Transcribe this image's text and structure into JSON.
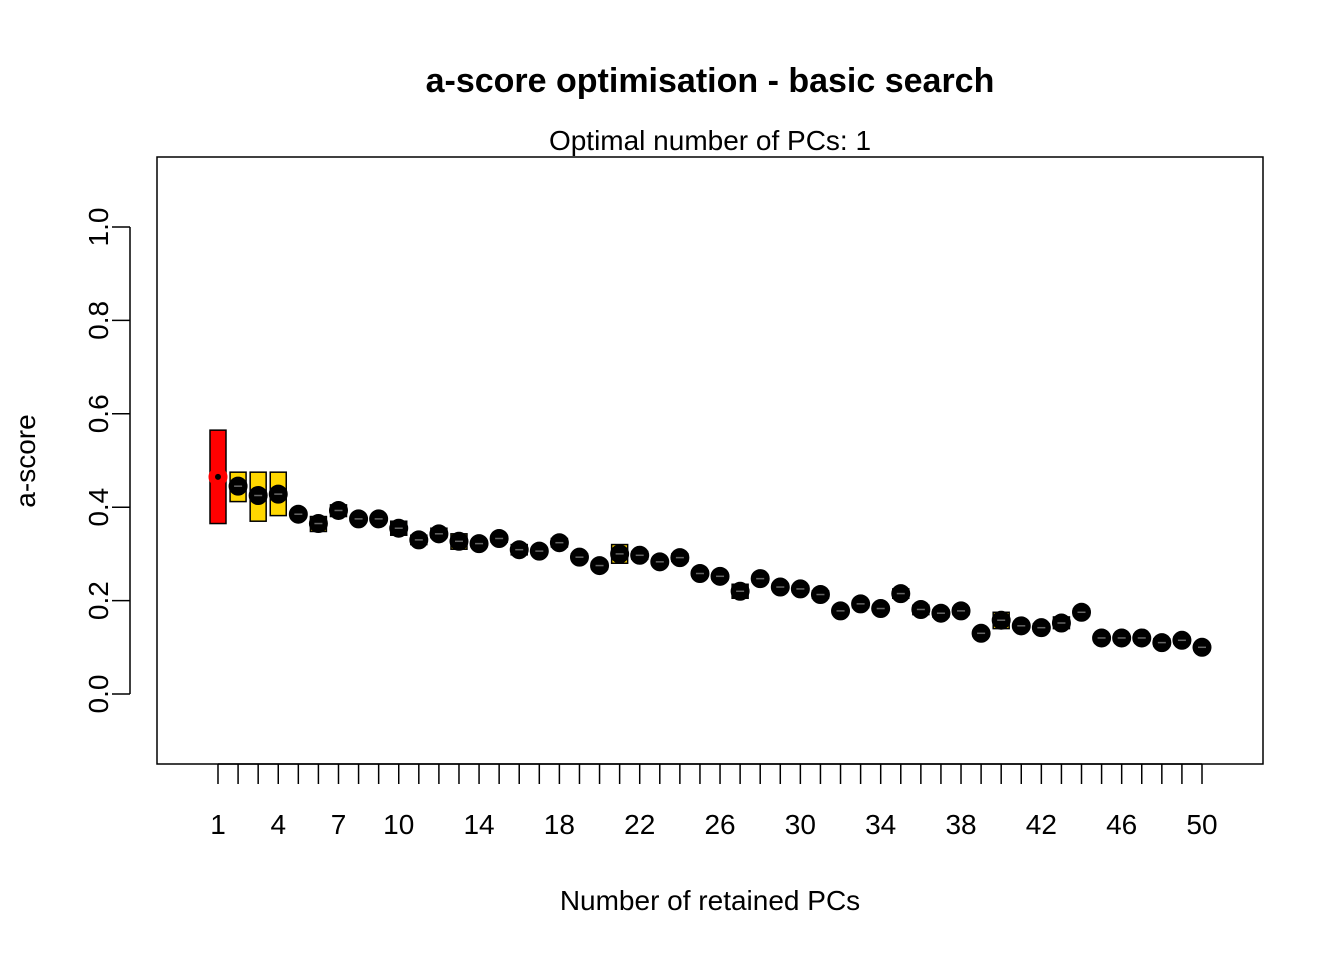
{
  "chart_data": {
    "type": "box",
    "title": "a-score optimisation - basic search",
    "subtitle": "Optimal number of PCs: 1",
    "xlabel": "Number of retained PCs",
    "ylabel": "a-score",
    "xlim": [
      1,
      50
    ],
    "ylim": [
      -0.15,
      1.15
    ],
    "x_tick_labels": [
      "1",
      "4",
      "7",
      "10",
      "14",
      "18",
      "22",
      "26",
      "30",
      "34",
      "38",
      "42",
      "46",
      "50"
    ],
    "y_ticks": [
      "0.0",
      "0.2",
      "0.4",
      "0.6",
      "0.8",
      "1.0"
    ],
    "optimal_pc": 1,
    "colors": {
      "optimal": "#ff0000",
      "box": "#ffd700",
      "point": "#000000",
      "frame": "#000000"
    },
    "x": [
      1,
      2,
      3,
      4,
      5,
      6,
      7,
      8,
      9,
      10,
      11,
      12,
      13,
      14,
      15,
      16,
      17,
      18,
      19,
      20,
      21,
      22,
      23,
      24,
      25,
      26,
      27,
      28,
      29,
      30,
      31,
      32,
      33,
      34,
      35,
      36,
      37,
      38,
      39,
      40,
      41,
      42,
      43,
      44,
      45,
      46,
      47,
      48,
      49,
      50
    ],
    "median": [
      0.465,
      0.445,
      0.425,
      0.428,
      0.385,
      0.365,
      0.393,
      0.375,
      0.375,
      0.355,
      0.33,
      0.343,
      0.327,
      0.322,
      0.333,
      0.309,
      0.306,
      0.324,
      0.293,
      0.275,
      0.3,
      0.297,
      0.283,
      0.292,
      0.258,
      0.252,
      0.22,
      0.247,
      0.229,
      0.225,
      0.213,
      0.178,
      0.193,
      0.183,
      0.215,
      0.181,
      0.173,
      0.178,
      0.13,
      0.158,
      0.146,
      0.142,
      0.152,
      0.175,
      0.12,
      0.12,
      0.12,
      0.11,
      0.115,
      0.1
    ],
    "box_low": [
      0.365,
      0.412,
      0.37,
      0.382,
      0.385,
      0.348,
      0.38,
      0.375,
      0.375,
      0.34,
      0.32,
      0.335,
      0.31,
      0.322,
      0.325,
      0.298,
      0.306,
      0.315,
      0.293,
      0.268,
      0.28,
      0.289,
      0.277,
      0.284,
      0.258,
      0.245,
      0.205,
      0.24,
      0.222,
      0.218,
      0.205,
      0.178,
      0.185,
      0.183,
      0.205,
      0.17,
      0.165,
      0.17,
      0.124,
      0.14,
      0.14,
      0.135,
      0.14,
      0.168,
      0.115,
      0.114,
      0.113,
      0.103,
      0.108,
      0.095
    ],
    "box_high": [
      0.565,
      0.475,
      0.475,
      0.475,
      0.385,
      0.38,
      0.405,
      0.375,
      0.375,
      0.37,
      0.34,
      0.355,
      0.343,
      0.322,
      0.34,
      0.32,
      0.306,
      0.333,
      0.3,
      0.282,
      0.32,
      0.305,
      0.289,
      0.3,
      0.258,
      0.258,
      0.235,
      0.254,
      0.236,
      0.232,
      0.221,
      0.178,
      0.2,
      0.183,
      0.225,
      0.19,
      0.18,
      0.185,
      0.136,
      0.175,
      0.152,
      0.15,
      0.165,
      0.182,
      0.125,
      0.125,
      0.127,
      0.118,
      0.122,
      0.105
    ]
  }
}
